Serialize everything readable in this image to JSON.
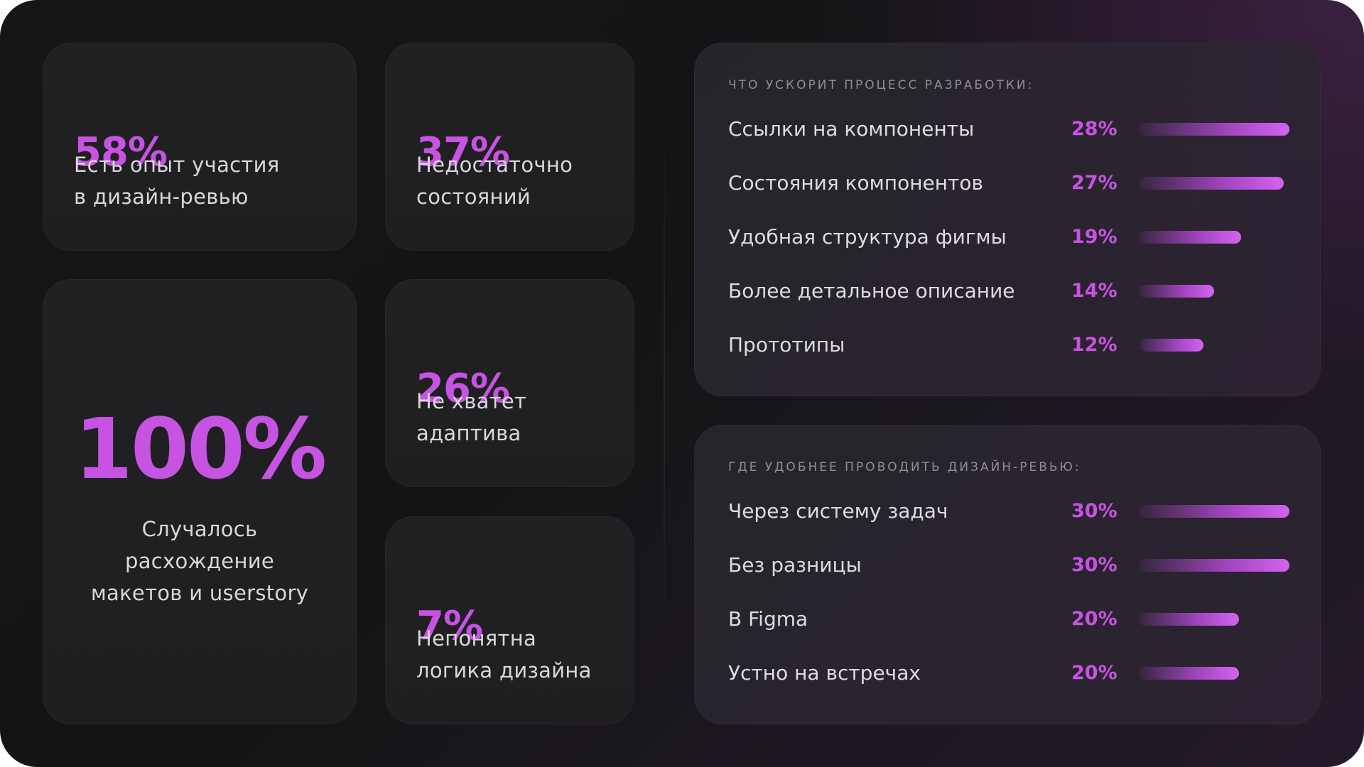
{
  "accent_color": "#c653e2",
  "stats": {
    "experience": {
      "value": "58%",
      "label_line1": "Есть опыт участия",
      "label_line2": "в дизайн-ревью"
    },
    "states": {
      "value": "37%",
      "label_line1": "Недостаточно",
      "label_line2": "состояний"
    },
    "mismatch": {
      "value": "100%",
      "label_line1": "Случалось",
      "label_line2": "расхождение",
      "label_line3": "макетов и userstory"
    },
    "adaptive": {
      "value": "26%",
      "label_line1": "Не хватет",
      "label_line2": "адаптива"
    },
    "logic": {
      "value": "7%",
      "label_line1": "Непонятна",
      "label_line2": "логика дизайна"
    }
  },
  "chart_data": [
    {
      "type": "bar",
      "orientation": "horizontal",
      "title": "ЧТО УСКОРИТ ПРОЦЕСС РАЗРАБОТКИ:",
      "categories": [
        "Ссылки на компоненты",
        "Состояния компонентов",
        "Удобная структура фигмы",
        "Более детальное описание",
        "Прототипы"
      ],
      "values": [
        28,
        27,
        19,
        14,
        12
      ],
      "value_labels": [
        "28%",
        "27%",
        "19%",
        "14%",
        "12%"
      ],
      "xlim": [
        0,
        28
      ]
    },
    {
      "type": "bar",
      "orientation": "horizontal",
      "title": "ГДЕ УДОБНЕЕ ПРОВОДИТЬ ДИЗАЙН-РЕВЬЮ:",
      "categories": [
        "Через систему задач",
        "Без разницы",
        "В Figma",
        "Устно на встречах"
      ],
      "values": [
        30,
        30,
        20,
        20
      ],
      "value_labels": [
        "30%",
        "30%",
        "20%",
        "20%"
      ],
      "xlim": [
        0,
        30
      ]
    }
  ]
}
